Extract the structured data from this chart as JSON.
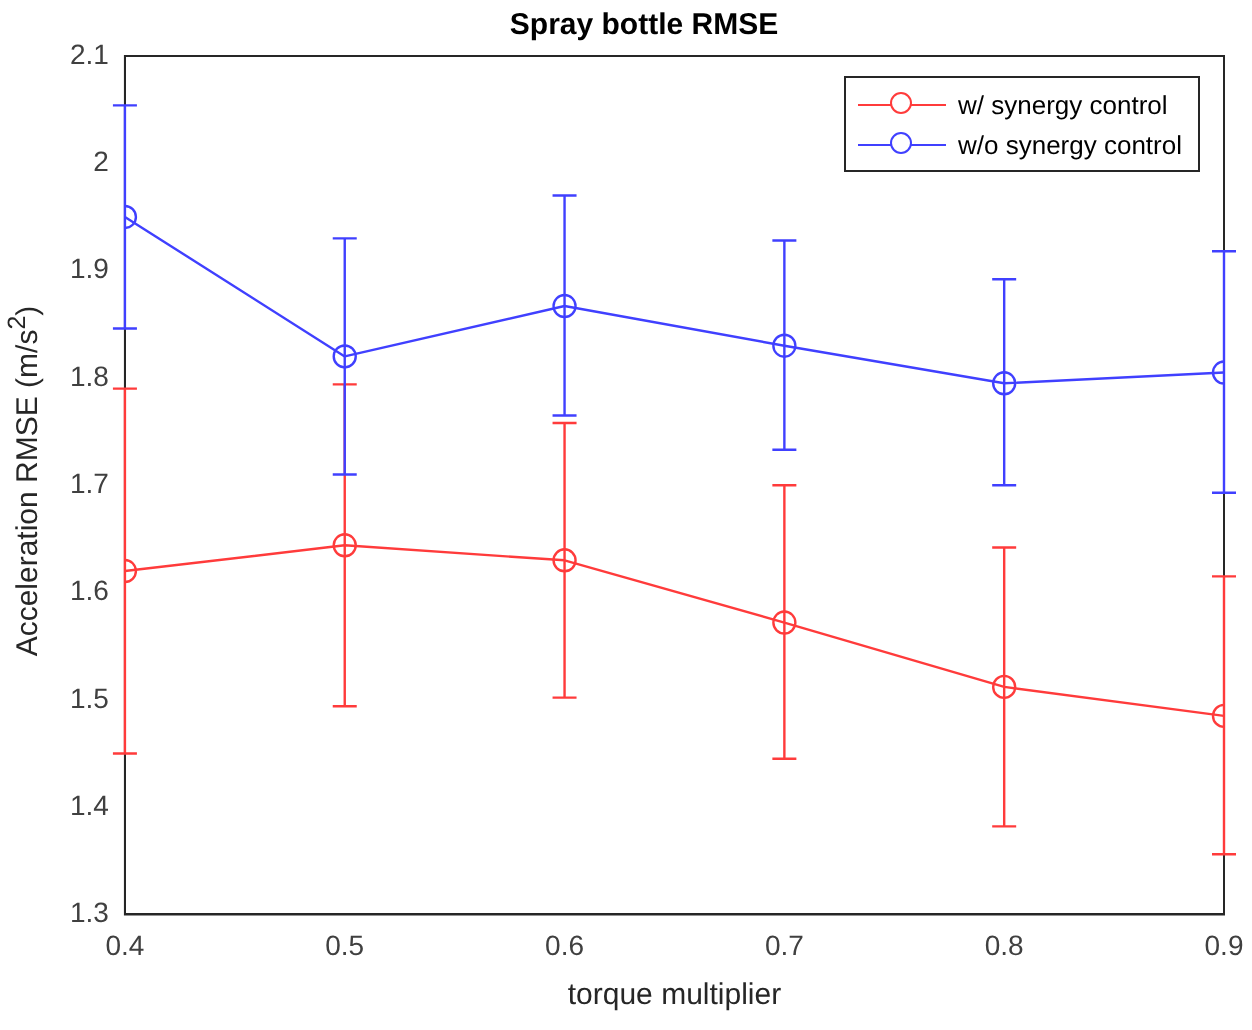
{
  "chart_data": {
    "type": "line",
    "title": "Spray bottle RMSE",
    "xlabel": "torque multiplier",
    "ylabel": "Acceleration RMSE (m/s$^{2}$)",
    "x": [
      0.4,
      0.5,
      0.6,
      0.7,
      0.8,
      0.9
    ],
    "xlim": [
      0.4,
      0.9
    ],
    "xticks": [
      0.4,
      0.5,
      0.6,
      0.7,
      0.8,
      0.9
    ],
    "ylim": [
      1.3,
      2.1
    ],
    "yticks": [
      1.3,
      1.4,
      1.5,
      1.6,
      1.7,
      1.8,
      1.9,
      2,
      2.1
    ],
    "grid": false,
    "legend": "top right",
    "marker": "circle",
    "line_style": "solid",
    "series": [
      {
        "name": "w/ synergy control",
        "color": "#ff3b3b",
        "values": [
          1.62,
          1.644,
          1.63,
          1.572,
          1.512,
          1.485
        ],
        "errors": [
          [
            1.45,
            1.79
          ],
          [
            1.494,
            1.794
          ],
          [
            1.502,
            1.758
          ],
          [
            1.445,
            1.7
          ],
          [
            1.382,
            1.642
          ],
          [
            1.356,
            1.615
          ]
        ]
      },
      {
        "name": "w/o synergy control",
        "color": "#4040ff",
        "values": [
          1.95,
          1.82,
          1.867,
          1.83,
          1.795,
          1.805
        ],
        "errors": [
          [
            1.846,
            2.054
          ],
          [
            1.71,
            1.93
          ],
          [
            1.765,
            1.97
          ],
          [
            1.733,
            1.928
          ],
          [
            1.7,
            1.892
          ],
          [
            1.693,
            1.918
          ]
        ]
      }
    ]
  }
}
